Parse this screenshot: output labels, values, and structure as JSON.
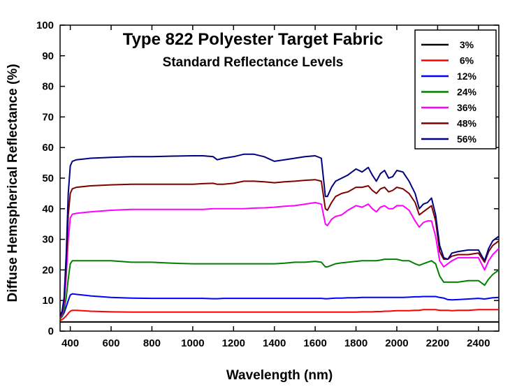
{
  "chart_data": {
    "type": "line",
    "title": "Type 822 Polyester Target Fabric",
    "subtitle": "Standard Reflectance Levels",
    "xlabel": "Wavelength (nm)",
    "ylabel": "Diffuse Hemspherical Reflectance (%)",
    "xlim": [
      350,
      2500
    ],
    "ylim": [
      0,
      100
    ],
    "x_ticks": [
      400,
      600,
      800,
      1000,
      1200,
      1400,
      1600,
      1800,
      2000,
      2200,
      2400
    ],
    "y_ticks": [
      0,
      10,
      20,
      30,
      40,
      50,
      60,
      70,
      80,
      90,
      100
    ],
    "grid": false,
    "legend_position": "top-right",
    "x": [
      350,
      360,
      370,
      380,
      390,
      400,
      410,
      430,
      500,
      600,
      700,
      800,
      900,
      1000,
      1050,
      1100,
      1120,
      1150,
      1200,
      1250,
      1300,
      1350,
      1400,
      1450,
      1500,
      1550,
      1600,
      1630,
      1650,
      1660,
      1680,
      1700,
      1730,
      1760,
      1800,
      1830,
      1860,
      1880,
      1900,
      1920,
      1940,
      1960,
      1980,
      2000,
      2030,
      2060,
      2090,
      2110,
      2130,
      2150,
      2170,
      2190,
      2210,
      2230,
      2250,
      2270,
      2300,
      2350,
      2400,
      2430,
      2450,
      2470,
      2500
    ],
    "series": [
      {
        "name": "3%",
        "color": "#000000",
        "values": [
          3.0,
          3.0,
          3.0,
          3.0,
          3.0,
          3.0,
          3.0,
          3.0,
          3.0,
          3.0,
          3.0,
          3.0,
          3.0,
          3.0,
          3.0,
          3.0,
          3.0,
          3.0,
          3.0,
          3.0,
          3.0,
          3.0,
          3.0,
          3.0,
          3.0,
          3.0,
          3.0,
          3.0,
          3.0,
          3.0,
          3.0,
          3.0,
          3.0,
          3.0,
          3.0,
          3.0,
          3.0,
          3.0,
          3.0,
          3.0,
          3.0,
          3.0,
          3.0,
          3.0,
          3.0,
          3.0,
          3.0,
          3.0,
          3.0,
          3.0,
          3.0,
          3.0,
          3.0,
          3.0,
          3.0,
          3.0,
          3.0,
          3.0,
          3.0,
          3.0,
          3.0,
          3.0,
          3.0
        ]
      },
      {
        "name": "6%",
        "color": "#ff0000",
        "values": [
          3.5,
          3.8,
          4.3,
          5.0,
          5.8,
          6.5,
          6.8,
          6.8,
          6.5,
          6.3,
          6.2,
          6.2,
          6.2,
          6.2,
          6.2,
          6.2,
          6.2,
          6.2,
          6.2,
          6.2,
          6.2,
          6.2,
          6.2,
          6.2,
          6.2,
          6.2,
          6.2,
          6.2,
          6.2,
          6.2,
          6.2,
          6.2,
          6.2,
          6.2,
          6.2,
          6.3,
          6.3,
          6.3,
          6.4,
          6.4,
          6.5,
          6.5,
          6.6,
          6.7,
          6.7,
          6.7,
          6.8,
          6.8,
          7.0,
          7.0,
          7.0,
          7.0,
          6.8,
          6.8,
          6.8,
          6.7,
          6.8,
          6.8,
          7.0,
          7.0,
          7.0,
          7.0,
          7.0
        ]
      },
      {
        "name": "12%",
        "color": "#0000ff",
        "values": [
          4.0,
          4.8,
          6.0,
          8.0,
          10.0,
          11.8,
          12.2,
          12.0,
          11.5,
          11.0,
          10.8,
          10.7,
          10.7,
          10.7,
          10.7,
          10.6,
          10.6,
          10.7,
          10.7,
          10.7,
          10.7,
          10.7,
          10.7,
          10.7,
          10.7,
          10.7,
          10.7,
          10.7,
          10.6,
          10.6,
          10.7,
          10.8,
          10.8,
          10.9,
          10.9,
          11.0,
          11.0,
          11.0,
          11.0,
          11.0,
          11.0,
          11.0,
          11.0,
          11.0,
          11.0,
          11.1,
          11.2,
          11.2,
          11.3,
          11.3,
          11.3,
          11.3,
          11.0,
          10.8,
          10.3,
          10.2,
          10.3,
          10.5,
          10.7,
          10.5,
          10.7,
          10.9,
          11.0
        ]
      },
      {
        "name": "24%",
        "color": "#008000",
        "values": [
          4.0,
          5.0,
          7.0,
          11.0,
          17.0,
          22.0,
          23.0,
          23.0,
          23.0,
          23.0,
          22.5,
          22.5,
          22.2,
          22.0,
          22.0,
          22.0,
          22.0,
          22.0,
          22.0,
          22.0,
          22.0,
          22.0,
          22.0,
          22.2,
          22.5,
          22.5,
          22.8,
          22.5,
          21.0,
          21.0,
          21.5,
          22.0,
          22.3,
          22.5,
          22.8,
          23.0,
          23.0,
          23.0,
          23.0,
          23.2,
          23.5,
          23.5,
          23.5,
          23.5,
          23.0,
          23.0,
          22.0,
          21.5,
          22.0,
          22.5,
          23.0,
          22.0,
          18.0,
          16.0,
          16.0,
          16.0,
          16.0,
          16.5,
          16.5,
          15.0,
          17.0,
          18.5,
          20.0
        ]
      },
      {
        "name": "36%",
        "color": "#ff00ff",
        "values": [
          4.5,
          5.5,
          9.0,
          18.0,
          30.0,
          37.0,
          38.2,
          38.5,
          39.0,
          39.5,
          39.8,
          39.8,
          39.8,
          39.8,
          39.8,
          40.0,
          40.0,
          40.0,
          40.0,
          40.0,
          40.2,
          40.3,
          40.5,
          40.8,
          41.0,
          41.5,
          42.0,
          41.5,
          35.0,
          34.5,
          36.5,
          37.5,
          38.0,
          39.5,
          41.0,
          40.5,
          41.5,
          40.0,
          39.0,
          40.5,
          41.0,
          40.0,
          40.0,
          41.0,
          41.0,
          39.5,
          36.0,
          34.0,
          35.5,
          36.0,
          36.0,
          31.0,
          23.0,
          21.0,
          22.0,
          23.0,
          24.0,
          24.0,
          24.0,
          20.0,
          23.0,
          25.0,
          27.0
        ]
      },
      {
        "name": "48%",
        "color": "#800000",
        "values": [
          4.5,
          6.0,
          10.0,
          22.0,
          38.0,
          45.0,
          46.5,
          47.0,
          47.5,
          47.8,
          48.0,
          48.0,
          48.0,
          48.0,
          48.2,
          48.3,
          48.0,
          48.0,
          48.3,
          49.0,
          49.0,
          48.8,
          48.5,
          48.8,
          49.0,
          49.3,
          49.5,
          49.0,
          40.0,
          39.5,
          42.0,
          44.0,
          45.0,
          45.5,
          47.0,
          47.0,
          47.5,
          46.0,
          45.0,
          46.5,
          47.0,
          45.5,
          46.0,
          47.0,
          46.5,
          45.0,
          42.0,
          38.0,
          39.0,
          40.0,
          41.0,
          36.0,
          26.0,
          23.5,
          23.5,
          24.5,
          25.0,
          25.0,
          25.5,
          22.5,
          26.0,
          28.0,
          29.5
        ]
      },
      {
        "name": "56%",
        "color": "#000080",
        "values": [
          5.0,
          6.5,
          11.0,
          25.0,
          45.0,
          54.0,
          55.5,
          56.0,
          56.5,
          56.8,
          57.0,
          57.0,
          57.2,
          57.3,
          57.3,
          57.0,
          56.0,
          56.5,
          57.0,
          57.8,
          57.8,
          57.0,
          55.5,
          56.0,
          56.5,
          57.0,
          57.3,
          56.5,
          44.0,
          44.0,
          47.0,
          49.0,
          50.0,
          51.0,
          53.0,
          52.0,
          53.5,
          51.0,
          49.0,
          51.5,
          52.5,
          50.0,
          50.5,
          52.5,
          52.0,
          49.0,
          45.0,
          40.0,
          41.5,
          42.0,
          43.5,
          38.0,
          28.0,
          24.0,
          23.5,
          25.5,
          26.0,
          26.5,
          26.5,
          23.0,
          27.0,
          29.5,
          31.0
        ]
      }
    ]
  }
}
